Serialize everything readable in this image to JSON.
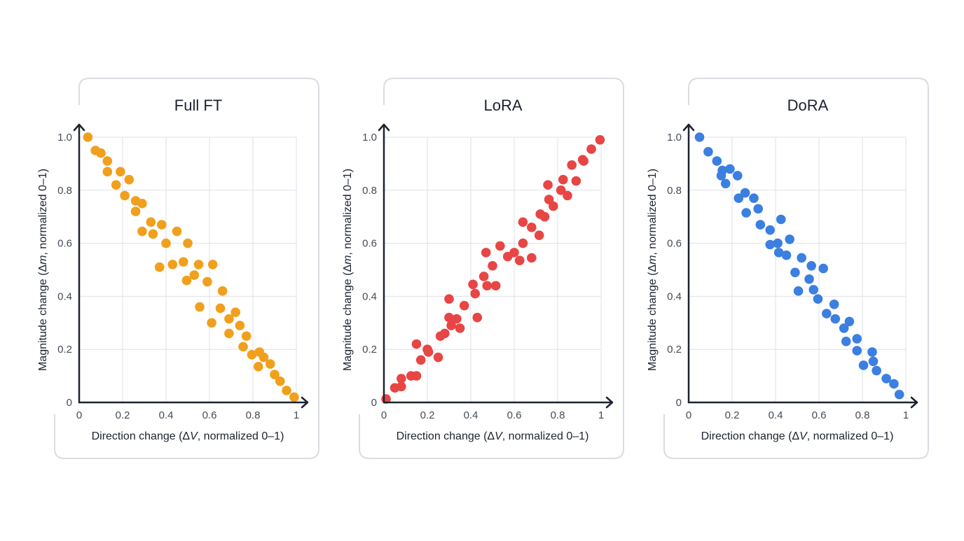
{
  "chart_data": [
    {
      "type": "scatter",
      "title": "Full FT",
      "xlabel": {
        "prefix": "Direction change (Δ",
        "var": "V",
        "suffix": ", normalized 0–1)"
      },
      "ylabel": {
        "prefix": "Magnitude change (Δ",
        "var": "m",
        "suffix": ", normalized 0–1)"
      },
      "xlim": [
        0,
        1
      ],
      "ylim": [
        0,
        1
      ],
      "xticks": [
        "0",
        "0.2",
        "0.4",
        "0.6",
        "0.8",
        "1"
      ],
      "yticks": [
        "0",
        "0.2",
        "0.4",
        "0.6",
        "0.8",
        "1.0"
      ],
      "grid": true,
      "color": "#F0A01C",
      "points": [
        [
          0.04,
          1.0
        ],
        [
          0.075,
          0.95
        ],
        [
          0.1,
          0.94
        ],
        [
          0.13,
          0.91
        ],
        [
          0.13,
          0.87
        ],
        [
          0.19,
          0.87
        ],
        [
          0.17,
          0.82
        ],
        [
          0.23,
          0.84
        ],
        [
          0.21,
          0.78
        ],
        [
          0.26,
          0.76
        ],
        [
          0.29,
          0.75
        ],
        [
          0.26,
          0.72
        ],
        [
          0.33,
          0.68
        ],
        [
          0.38,
          0.67
        ],
        [
          0.29,
          0.645
        ],
        [
          0.34,
          0.635
        ],
        [
          0.45,
          0.645
        ],
        [
          0.4,
          0.6
        ],
        [
          0.5,
          0.6
        ],
        [
          0.37,
          0.51
        ],
        [
          0.43,
          0.52
        ],
        [
          0.48,
          0.53
        ],
        [
          0.55,
          0.52
        ],
        [
          0.615,
          0.52
        ],
        [
          0.53,
          0.48
        ],
        [
          0.495,
          0.46
        ],
        [
          0.59,
          0.455
        ],
        [
          0.66,
          0.42
        ],
        [
          0.555,
          0.36
        ],
        [
          0.65,
          0.355
        ],
        [
          0.61,
          0.3
        ],
        [
          0.72,
          0.34
        ],
        [
          0.69,
          0.315
        ],
        [
          0.74,
          0.29
        ],
        [
          0.69,
          0.26
        ],
        [
          0.77,
          0.25
        ],
        [
          0.755,
          0.21
        ],
        [
          0.795,
          0.18
        ],
        [
          0.83,
          0.19
        ],
        [
          0.85,
          0.17
        ],
        [
          0.825,
          0.135
        ],
        [
          0.88,
          0.145
        ],
        [
          0.9,
          0.105
        ],
        [
          0.925,
          0.08
        ],
        [
          0.955,
          0.045
        ],
        [
          0.99,
          0.02
        ]
      ]
    },
    {
      "type": "scatter",
      "title": "LoRA",
      "xlabel": {
        "prefix": "Direction change (Δ",
        "var": "V",
        "suffix": ", normalized 0–1)"
      },
      "ylabel": {
        "prefix": "Magnitude change (Δ",
        "var": "m",
        "suffix": ", normalized 0–1)"
      },
      "xlim": [
        0,
        1
      ],
      "ylim": [
        0,
        1
      ],
      "xticks": [
        "0",
        "0.2",
        "0.4",
        "0.6",
        "0.8",
        "1"
      ],
      "yticks": [
        "0",
        "0.2",
        "0.4",
        "0.6",
        "0.8",
        "1.0"
      ],
      "grid": true,
      "color": "#E84545",
      "points": [
        [
          0.01,
          0.013
        ],
        [
          0.05,
          0.055
        ],
        [
          0.08,
          0.06
        ],
        [
          0.08,
          0.09
        ],
        [
          0.125,
          0.1
        ],
        [
          0.15,
          0.1
        ],
        [
          0.15,
          0.22
        ],
        [
          0.17,
          0.16
        ],
        [
          0.2,
          0.2
        ],
        [
          0.205,
          0.19
        ],
        [
          0.25,
          0.17
        ],
        [
          0.26,
          0.25
        ],
        [
          0.28,
          0.26
        ],
        [
          0.3,
          0.39
        ],
        [
          0.3,
          0.32
        ],
        [
          0.335,
          0.315
        ],
        [
          0.31,
          0.29
        ],
        [
          0.35,
          0.28
        ],
        [
          0.37,
          0.365
        ],
        [
          0.43,
          0.32
        ],
        [
          0.41,
          0.445
        ],
        [
          0.42,
          0.41
        ],
        [
          0.46,
          0.475
        ],
        [
          0.475,
          0.44
        ],
        [
          0.515,
          0.44
        ],
        [
          0.5,
          0.515
        ],
        [
          0.47,
          0.565
        ],
        [
          0.535,
          0.59
        ],
        [
          0.57,
          0.55
        ],
        [
          0.6,
          0.565
        ],
        [
          0.625,
          0.535
        ],
        [
          0.64,
          0.6
        ],
        [
          0.68,
          0.545
        ],
        [
          0.64,
          0.68
        ],
        [
          0.68,
          0.66
        ],
        [
          0.715,
          0.63
        ],
        [
          0.72,
          0.71
        ],
        [
          0.74,
          0.7
        ],
        [
          0.755,
          0.82
        ],
        [
          0.76,
          0.765
        ],
        [
          0.78,
          0.74
        ],
        [
          0.815,
          0.8
        ],
        [
          0.845,
          0.78
        ],
        [
          0.825,
          0.84
        ],
        [
          0.885,
          0.835
        ],
        [
          0.865,
          0.895
        ],
        [
          0.915,
          0.915
        ],
        [
          0.92,
          0.91
        ],
        [
          0.955,
          0.955
        ],
        [
          0.995,
          0.99
        ]
      ]
    },
    {
      "type": "scatter",
      "title": "DoRA",
      "xlabel": {
        "prefix": "Direction change (Δ",
        "var": "V",
        "suffix": ", normalized 0–1)"
      },
      "ylabel": {
        "prefix": "Magnitude change (Δ",
        "var": "m",
        "suffix": ", normalized 0–1)"
      },
      "xlim": [
        0,
        1
      ],
      "ylim": [
        0,
        1
      ],
      "xticks": [
        "0",
        "0.2",
        "0.4",
        "0.6",
        "0.8",
        "1"
      ],
      "yticks": [
        "0",
        "0.2",
        "0.4",
        "0.6",
        "0.8",
        "1.0"
      ],
      "grid": true,
      "color": "#3B7FE0",
      "points": [
        [
          0.05,
          1.0
        ],
        [
          0.09,
          0.945
        ],
        [
          0.13,
          0.91
        ],
        [
          0.155,
          0.875
        ],
        [
          0.15,
          0.855
        ],
        [
          0.19,
          0.88
        ],
        [
          0.17,
          0.825
        ],
        [
          0.225,
          0.855
        ],
        [
          0.23,
          0.77
        ],
        [
          0.26,
          0.79
        ],
        [
          0.3,
          0.77
        ],
        [
          0.265,
          0.715
        ],
        [
          0.32,
          0.73
        ],
        [
          0.33,
          0.67
        ],
        [
          0.425,
          0.69
        ],
        [
          0.375,
          0.65
        ],
        [
          0.375,
          0.595
        ],
        [
          0.41,
          0.6
        ],
        [
          0.415,
          0.565
        ],
        [
          0.465,
          0.615
        ],
        [
          0.45,
          0.555
        ],
        [
          0.52,
          0.545
        ],
        [
          0.565,
          0.515
        ],
        [
          0.62,
          0.505
        ],
        [
          0.49,
          0.49
        ],
        [
          0.555,
          0.465
        ],
        [
          0.575,
          0.425
        ],
        [
          0.505,
          0.42
        ],
        [
          0.595,
          0.39
        ],
        [
          0.67,
          0.37
        ],
        [
          0.635,
          0.335
        ],
        [
          0.675,
          0.315
        ],
        [
          0.74,
          0.305
        ],
        [
          0.715,
          0.28
        ],
        [
          0.725,
          0.23
        ],
        [
          0.775,
          0.24
        ],
        [
          0.775,
          0.195
        ],
        [
          0.845,
          0.19
        ],
        [
          0.85,
          0.155
        ],
        [
          0.805,
          0.14
        ],
        [
          0.865,
          0.12
        ],
        [
          0.91,
          0.09
        ],
        [
          0.945,
          0.07
        ],
        [
          0.97,
          0.03
        ]
      ]
    }
  ]
}
